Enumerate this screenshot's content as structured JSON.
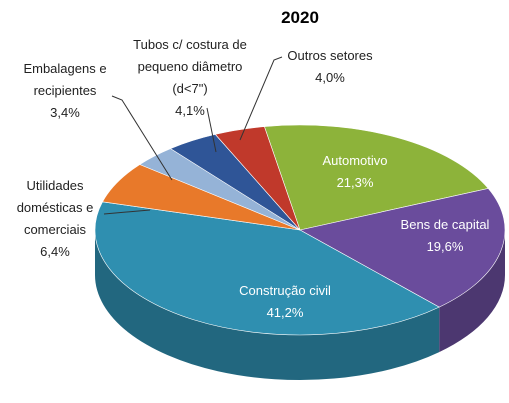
{
  "chart_data": {
    "type": "pie3d",
    "title": "2020",
    "categories": [
      "Automotivo",
      "Bens de capital",
      "Construção civil",
      "Utilidades domésticas e comerciais",
      "Embalagens e recipientes",
      "Tubos c/ costura de pequeno diâmetro (d<7\")",
      "Outros setores"
    ],
    "values": [
      21.3,
      19.6,
      41.2,
      6.4,
      3.4,
      4.1,
      4.0
    ],
    "value_labels": [
      "21,3%",
      "19,6%",
      "41,2%",
      "6,4%",
      "3,4%",
      "4,1%",
      "4,0%"
    ],
    "colors": [
      "#8db33a",
      "#6a4c9c",
      "#2f8fb0",
      "#e8792a",
      "#95b3d7",
      "#2f5597",
      "#c0392b"
    ]
  }
}
